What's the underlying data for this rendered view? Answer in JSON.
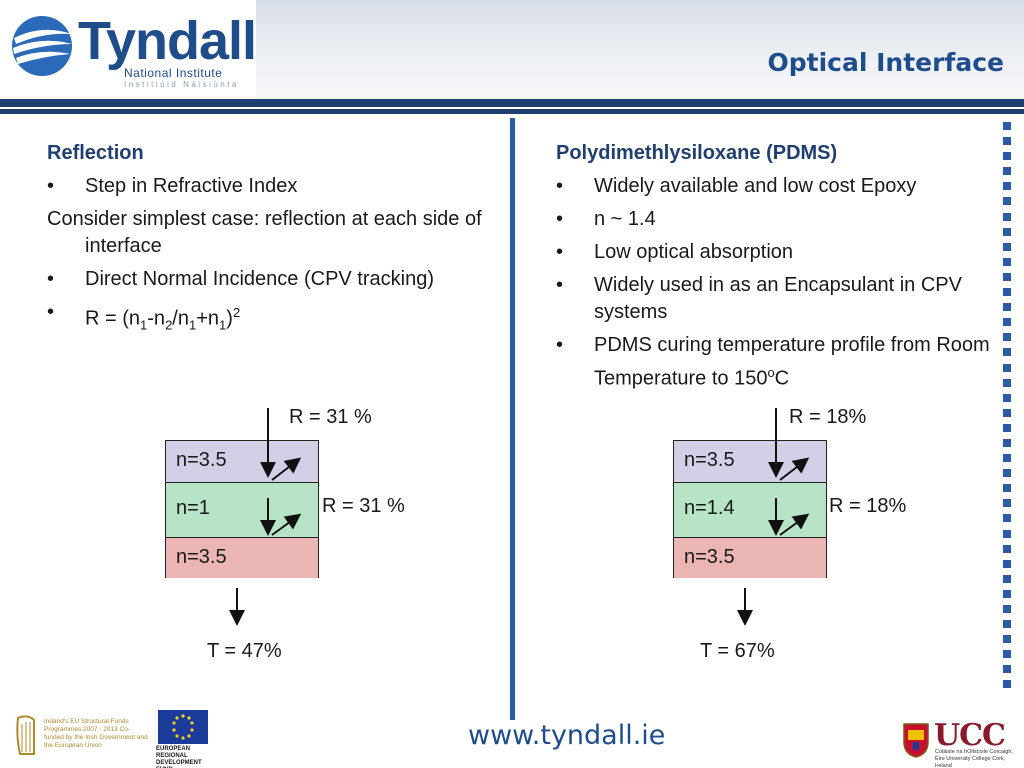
{
  "header": {
    "logo_word": "Tyndall",
    "logo_sub1": "National Institute",
    "logo_sub2": "Institiúid Náisiúnta",
    "title": "Optical Interface"
  },
  "left": {
    "heading": "Reflection",
    "bullet1": "Step in Refractive Index",
    "para": "Consider simplest case: reflection at each side of interface",
    "bullet2": "Direct Normal Incidence (CPV tracking)",
    "formula": {
      "prefix": "R = (n",
      "s1": "1",
      "m1": "-n",
      "s2": "2",
      "m2": "/n",
      "s3": "1",
      "m3": "+n",
      "s4": "1",
      "m4": ")",
      "sup": "2"
    }
  },
  "right": {
    "heading": "Polydimethlysiloxane (PDMS)",
    "bullet1": "Widely available and low cost Epoxy",
    "bullet2": "n ~ 1.4",
    "bullet3": "Low optical absorption",
    "bullet4": "Widely used in as an Encapsulant in CPV systems",
    "bullet5_pre": "PDMS curing temperature profile from Room Temperature to 150",
    "bullet5_sup": "o",
    "bullet5_post": "C"
  },
  "diagram_left": {
    "r_top": "R = 31 %",
    "r_mid": "R = 31 %",
    "t": "T = 47%",
    "layers": [
      "n=3.5",
      "n=1",
      "n=3.5"
    ],
    "layer_colors": [
      "#d2cfe6",
      "#b7e4c7",
      "#ebb5b3"
    ]
  },
  "diagram_right": {
    "r_top": "R = 18%",
    "r_mid": "R = 18%",
    "t": "T = 67%",
    "layers": [
      "n=3.5",
      "n=1.4",
      "n=3.5"
    ],
    "layer_colors": [
      "#d2cfe6",
      "#b7e4c7",
      "#ebb5b3"
    ]
  },
  "footer": {
    "url": "www.tyndall.ie",
    "fund_text": "Ireland's EU Structural Funds Programmes 2007 - 2013 Co-funded by the Irish Government and the European Union",
    "eu_text": "EUROPEAN REGIONAL DEVELOPMENT FUND",
    "ucc": "UCC",
    "ucc_sub": "Coláiste na hOllscoile Corcaigh, Éire University College Cork, Ireland"
  },
  "colors": {
    "brand_blue": "#1f4d8c",
    "bar_blue": "#1f3e72",
    "accent_blue": "#2a5aa8"
  }
}
